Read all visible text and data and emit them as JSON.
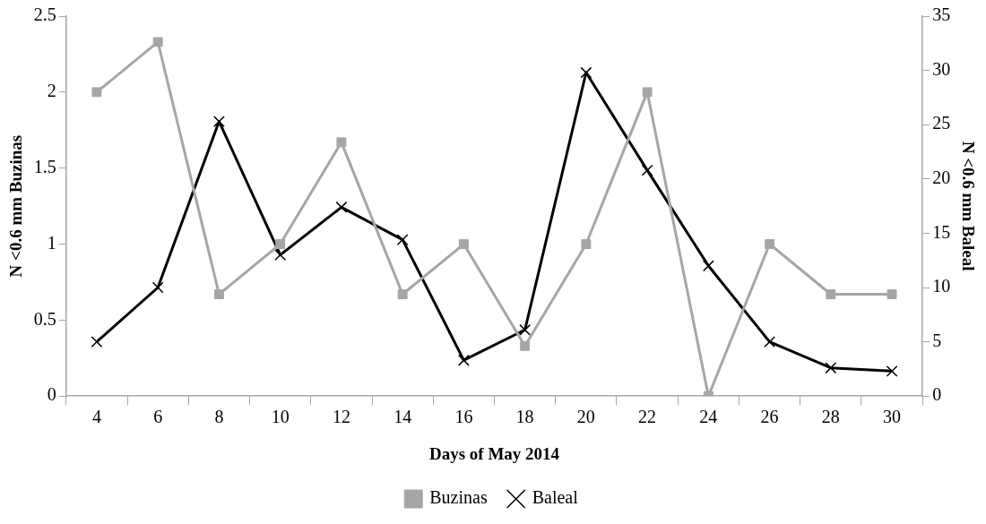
{
  "chart_data": {
    "type": "line",
    "xlabel": "Days of May 2014",
    "ylabel": "N <0.6 mm Buzinas",
    "y2label": "N <0.6 mm Baleal",
    "categories": [
      "4",
      "6",
      "8",
      "10",
      "12",
      "14",
      "16",
      "18",
      "20",
      "22",
      "24",
      "26",
      "28",
      "30"
    ],
    "series": [
      {
        "name": "Buzinas",
        "color": "#a6a6a6",
        "marker": "square",
        "values": [
          2,
          2.33,
          0.67,
          1,
          1.67,
          0.67,
          1,
          0.33,
          1,
          2,
          0,
          1,
          0.67,
          0.67
        ]
      },
      {
        "name": "Baleal",
        "color": "#000000",
        "marker": "cross",
        "axis": "y2",
        "values": [
          5,
          10,
          25.3,
          13,
          17.4,
          14.4,
          3.3,
          6.1,
          29.8,
          20.8,
          12,
          5,
          2.6,
          2.3
        ]
      }
    ],
    "ylim": [
      0,
      2.5
    ],
    "yticks": [
      0,
      0.5,
      1,
      1.5,
      2,
      2.5
    ],
    "y2lim": [
      0,
      35
    ],
    "y2ticks": [
      0,
      5,
      10,
      15,
      20,
      25,
      30,
      35
    ],
    "grid": false,
    "legend": "bottom",
    "line_style": "solid"
  }
}
